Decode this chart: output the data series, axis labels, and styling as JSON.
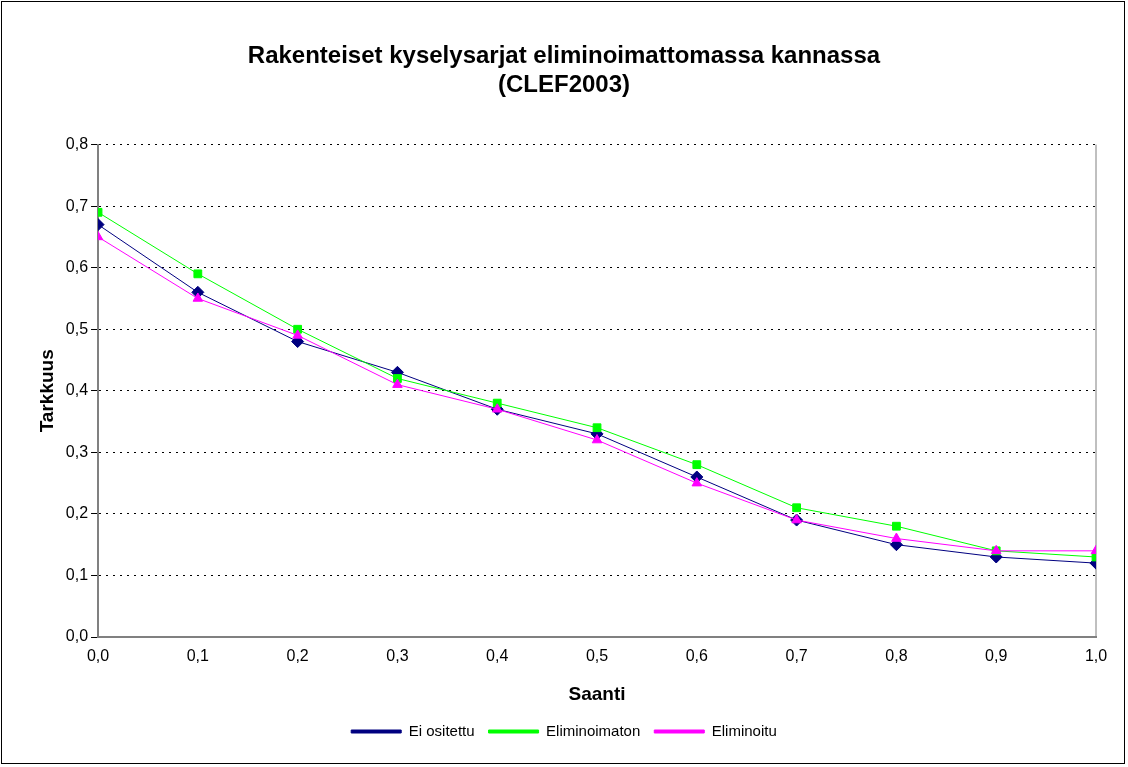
{
  "chart_data": {
    "type": "line",
    "title": "Rakenteiset kyselysarjat eliminoimattomassa kannassa\n(CLEF2003)",
    "xlabel": "Saanti",
    "ylabel": "Tarkkuus",
    "x": [
      0,
      0.1,
      0.2,
      0.3,
      0.4,
      0.5,
      0.6,
      0.7,
      0.8,
      0.9,
      1.0
    ],
    "series": [
      {
        "name": "Ei ositettu",
        "color": "#000080",
        "marker": "diamond",
        "values": [
          0.67,
          0.56,
          0.48,
          0.43,
          0.37,
          0.33,
          0.26,
          0.19,
          0.15,
          0.13,
          0.12
        ]
      },
      {
        "name": "Eliminoimaton",
        "color": "#00ff00",
        "marker": "square",
        "values": [
          0.69,
          0.59,
          0.5,
          0.42,
          0.38,
          0.34,
          0.28,
          0.21,
          0.18,
          0.14,
          0.13
        ]
      },
      {
        "name": "Eliminoitu",
        "color": "#ff00ff",
        "marker": "triangle",
        "values": [
          0.65,
          0.55,
          0.49,
          0.41,
          0.37,
          0.32,
          0.25,
          0.19,
          0.16,
          0.14,
          0.14
        ]
      }
    ],
    "xlim": [
      0,
      1.0
    ],
    "xticks": [
      {
        "value": 0,
        "label": "0,0"
      },
      {
        "value": 0.1,
        "label": "0,1"
      },
      {
        "value": 0.2,
        "label": "0,2"
      },
      {
        "value": 0.3,
        "label": "0,3"
      },
      {
        "value": 0.4,
        "label": "0,4"
      },
      {
        "value": 0.5,
        "label": "0,5"
      },
      {
        "value": 0.6,
        "label": "0,6"
      },
      {
        "value": 0.7,
        "label": "0,7"
      },
      {
        "value": 0.8,
        "label": "0,8"
      },
      {
        "value": 0.9,
        "label": "0,9"
      },
      {
        "value": 1.0,
        "label": "1,0"
      }
    ],
    "ylim": [
      0,
      0.8
    ],
    "yticks": [
      {
        "value": 0,
        "label": "0,0"
      },
      {
        "value": 0.1,
        "label": "0,1"
      },
      {
        "value": 0.2,
        "label": "0,2"
      },
      {
        "value": 0.3,
        "label": "0,3"
      },
      {
        "value": 0.4,
        "label": "0,4"
      },
      {
        "value": 0.5,
        "label": "0,5"
      },
      {
        "value": 0.6,
        "label": "0,6"
      },
      {
        "value": 0.7,
        "label": "0,7"
      },
      {
        "value": 0.8,
        "label": "0,8"
      }
    ],
    "grid": "y",
    "legend": "bottom",
    "line_style": "solid"
  }
}
